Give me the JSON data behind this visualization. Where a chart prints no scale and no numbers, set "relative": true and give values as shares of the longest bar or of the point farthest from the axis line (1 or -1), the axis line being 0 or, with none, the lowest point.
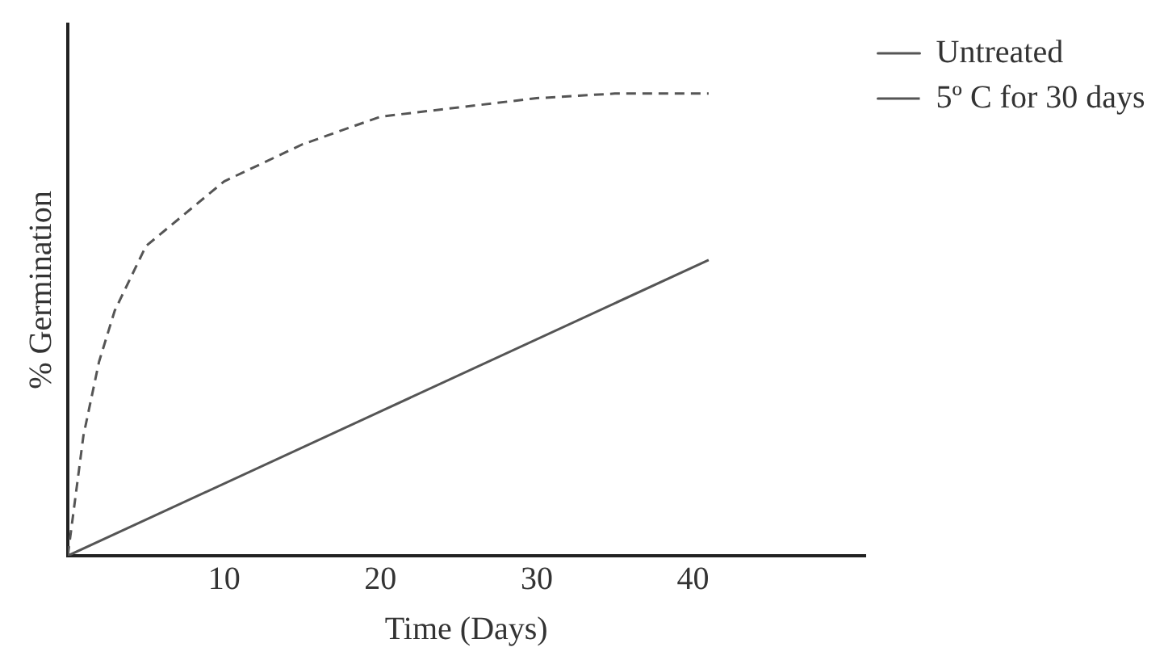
{
  "chart_data": {
    "type": "line",
    "relative": true,
    "xlabel": "Time (Days)",
    "ylabel": "% Germination",
    "xlim": [
      0,
      51
    ],
    "xticks": [
      10,
      20,
      30,
      40
    ],
    "grid": false,
    "legend": "right",
    "marker": "none",
    "series": [
      {
        "name": "Untreated",
        "color": "#555555",
        "line_style": "solid",
        "x": [
          0,
          41
        ],
        "values": [
          0,
          0.64
        ]
      },
      {
        "name": "5º C for 30 days",
        "color": "#555555",
        "line_style": "dashed",
        "x": [
          0,
          1,
          2,
          3,
          5,
          10,
          15,
          20,
          25,
          30,
          35,
          41
        ],
        "values": [
          0,
          0.26,
          0.42,
          0.53,
          0.67,
          0.81,
          0.89,
          0.95,
          0.97,
          0.99,
          1,
          1
        ]
      }
    ]
  }
}
